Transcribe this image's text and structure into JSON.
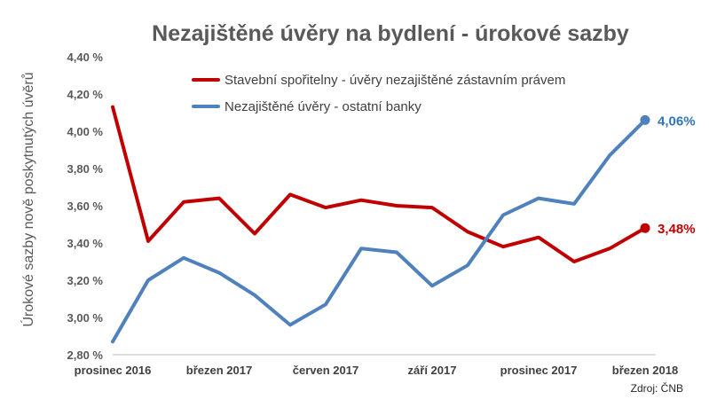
{
  "colors": {
    "series_red": "#c00000",
    "series_blue": "#4f81bd",
    "label_blue": "#2e75b6",
    "gridline": "#d9d9d9",
    "axis": "#bfbfbf"
  },
  "chart_data": {
    "type": "line",
    "title": "Nezajištěné úvěry na bydlení - úrokové sazby",
    "ylabel": "Úrokové sazby nově poskytnutých úvěrů",
    "xlabel": "",
    "source": "Zdroj: ČNB",
    "ylim": [
      2.8,
      4.4
    ],
    "y_ticks": [
      "2,80 %",
      "3,00 %",
      "3,20 %",
      "3,40 %",
      "3,60 %",
      "3,80 %",
      "4,00 %",
      "4,20 %",
      "4,40 %"
    ],
    "grid": false,
    "legend_position": "top",
    "x": [
      "prosinec 2016",
      "leden 2017",
      "únor 2017",
      "březen 2017",
      "duben 2017",
      "květen 2017",
      "červen 2017",
      "červenec 2017",
      "srpen 2017",
      "září 2017",
      "říjen 2017",
      "listopad 2017",
      "prosinec 2017",
      "leden 2018",
      "únor 2018",
      "březen 2018"
    ],
    "x_tick_labels": [
      {
        "index": 0,
        "label": "prosinec 2016"
      },
      {
        "index": 3,
        "label": "březen 2017"
      },
      {
        "index": 6,
        "label": "červen 2017"
      },
      {
        "index": 9,
        "label": "září 2017"
      },
      {
        "index": 12,
        "label": "prosinec 2017"
      },
      {
        "index": 15,
        "label": "březen 2018"
      }
    ],
    "series": [
      {
        "name": "Stavební spořitelny - úvěry nezajištěné zástavním právem",
        "color": "#c00000",
        "values": [
          4.13,
          3.41,
          3.62,
          3.64,
          3.45,
          3.66,
          3.59,
          3.63,
          3.6,
          3.59,
          3.46,
          3.38,
          3.43,
          3.3,
          3.37,
          3.48
        ],
        "end_label": "3,48%"
      },
      {
        "name": "Nezajištěné úvěry - ostatní banky",
        "color": "#4f81bd",
        "values": [
          2.87,
          3.2,
          3.32,
          3.24,
          3.12,
          2.96,
          3.07,
          3.37,
          3.35,
          3.17,
          3.28,
          3.55,
          3.64,
          3.61,
          3.87,
          4.06
        ],
        "end_label": "4,06%"
      }
    ]
  }
}
